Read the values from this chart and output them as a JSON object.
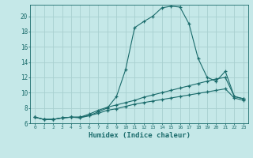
{
  "xlabel": "Humidex (Indice chaleur)",
  "bg_color": "#c5e8e8",
  "grid_color": "#a8d0d0",
  "line_color": "#1a6b6b",
  "spine_color": "#1a6b6b",
  "xlim": [
    -0.5,
    23.5
  ],
  "ylim": [
    6,
    21.5
  ],
  "xticks": [
    0,
    1,
    2,
    3,
    4,
    5,
    6,
    7,
    8,
    9,
    10,
    11,
    12,
    13,
    14,
    15,
    16,
    17,
    18,
    19,
    20,
    21,
    22,
    23
  ],
  "yticks": [
    6,
    8,
    10,
    12,
    14,
    16,
    18,
    20
  ],
  "line1_x": [
    0,
    1,
    2,
    3,
    4,
    5,
    6,
    7,
    8,
    9,
    10,
    11,
    12,
    13,
    14,
    15,
    16,
    17,
    18,
    19,
    20,
    21,
    22,
    23
  ],
  "line1_y": [
    6.8,
    6.5,
    6.5,
    6.7,
    6.8,
    6.7,
    7.0,
    7.5,
    8.0,
    9.5,
    13.0,
    18.5,
    19.3,
    20.0,
    21.1,
    21.3,
    21.2,
    19.0,
    14.5,
    12.0,
    11.5,
    12.8,
    9.5,
    9.2
  ],
  "line2_x": [
    0,
    1,
    2,
    3,
    4,
    5,
    6,
    7,
    8,
    9,
    10,
    11,
    12,
    13,
    14,
    15,
    16,
    17,
    18,
    19,
    20,
    21,
    22,
    23
  ],
  "line2_y": [
    6.8,
    6.5,
    6.5,
    6.7,
    6.8,
    6.8,
    7.2,
    7.7,
    8.1,
    8.4,
    8.7,
    9.0,
    9.4,
    9.7,
    10.0,
    10.3,
    10.6,
    10.9,
    11.2,
    11.5,
    11.8,
    12.0,
    9.5,
    9.2
  ],
  "line3_x": [
    0,
    1,
    2,
    3,
    4,
    5,
    6,
    7,
    8,
    9,
    10,
    11,
    12,
    13,
    14,
    15,
    16,
    17,
    18,
    19,
    20,
    21,
    22,
    23
  ],
  "line3_y": [
    6.8,
    6.5,
    6.5,
    6.7,
    6.8,
    6.8,
    7.0,
    7.3,
    7.7,
    7.9,
    8.2,
    8.5,
    8.7,
    8.9,
    9.1,
    9.3,
    9.5,
    9.7,
    9.9,
    10.1,
    10.3,
    10.5,
    9.3,
    9.0
  ]
}
